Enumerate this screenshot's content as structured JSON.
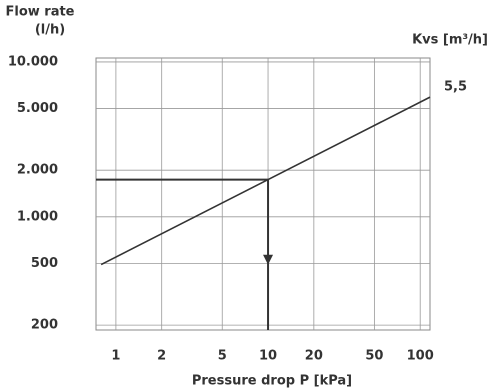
{
  "chart_data": {
    "type": "line",
    "y_label_lines": [
      "Flow rate",
      "(l/h)"
    ],
    "x_label": "Pressure drop P [kPa]",
    "series_title": "Kvs [m³/h]",
    "log_x": true,
    "log_y": true,
    "grid": true,
    "xlim": [
      0.74,
      116
    ],
    "xticks": [
      1,
      2,
      5,
      10,
      20,
      50,
      100
    ],
    "ylim": [
      186,
      10600
    ],
    "yticks": [
      {
        "value": 10000,
        "label": "10.000"
      },
      {
        "value": 5000,
        "label": "5.000"
      },
      {
        "value": 2000,
        "label": "2.000"
      },
      {
        "value": 1000,
        "label": "1.000"
      },
      500,
      200
    ],
    "series": [
      {
        "name": "5,5",
        "color": "#333333",
        "x": [
          0.8,
          116
        ],
        "values": [
          492,
          5924
        ]
      }
    ],
    "reading": {
      "x": 10,
      "y": 1740
    }
  }
}
